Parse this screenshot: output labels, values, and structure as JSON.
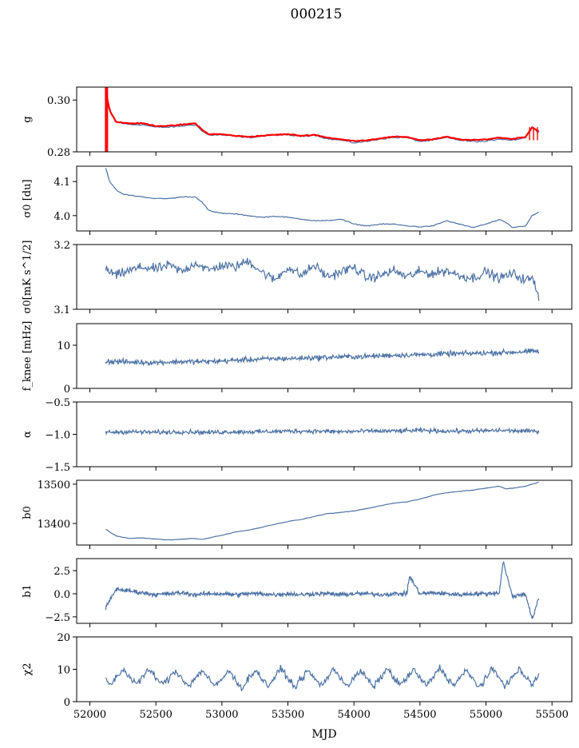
{
  "figure": {
    "title": "000215",
    "xlabel": "MJD"
  },
  "chart_data": [
    {
      "type": "line",
      "ylabel": "g",
      "ylim": [
        0.28,
        0.305
      ],
      "yticks": [
        0.28,
        0.3
      ],
      "ytick_labels": [
        "0.28",
        "0.30"
      ],
      "xlim": [
        51900,
        55650
      ],
      "series": [
        {
          "role": "data",
          "color": "#4c72a4",
          "x": [
            52120,
            52150,
            52200,
            52300,
            52400,
            52500,
            52600,
            52700,
            52800,
            52850,
            52900,
            53000,
            53100,
            53200,
            53300,
            53400,
            53500,
            53600,
            53700,
            53800,
            53900,
            54000,
            54100,
            54200,
            54300,
            54400,
            54500,
            54600,
            54700,
            54800,
            54900,
            55000,
            55100,
            55200,
            55300,
            55350,
            55400
          ],
          "y": [
            0.304,
            0.296,
            0.2915,
            0.2905,
            0.2905,
            0.2895,
            0.2895,
            0.29,
            0.2905,
            0.288,
            0.2865,
            0.2865,
            0.286,
            0.2855,
            0.286,
            0.2865,
            0.2865,
            0.286,
            0.2865,
            0.285,
            0.2845,
            0.2835,
            0.284,
            0.285,
            0.2855,
            0.2855,
            0.284,
            0.2845,
            0.2855,
            0.2845,
            0.284,
            0.284,
            0.285,
            0.2845,
            0.2855,
            0.2895,
            0.2875
          ]
        },
        {
          "role": "fit",
          "color": "#ff0000",
          "x": [
            52120,
            52150,
            52200,
            52300,
            52400,
            52500,
            52600,
            52700,
            52800,
            52850,
            52900,
            53000,
            53100,
            53200,
            53300,
            53400,
            53500,
            53600,
            53700,
            53800,
            53900,
            54000,
            54100,
            54200,
            54300,
            54400,
            54500,
            54600,
            54700,
            54800,
            54900,
            55000,
            55100,
            55200,
            55300,
            55350,
            55400
          ],
          "y": [
            0.3035,
            0.296,
            0.2915,
            0.291,
            0.291,
            0.29,
            0.29,
            0.2905,
            0.291,
            0.2885,
            0.2868,
            0.2868,
            0.2862,
            0.2858,
            0.2862,
            0.2866,
            0.2868,
            0.2862,
            0.2866,
            0.2855,
            0.2848,
            0.2842,
            0.2845,
            0.2852,
            0.2858,
            0.2858,
            0.2845,
            0.2848,
            0.2858,
            0.2848,
            0.2845,
            0.2848,
            0.2855,
            0.285,
            0.2858,
            0.2895,
            0.2878
          ]
        }
      ]
    },
    {
      "type": "line",
      "ylabel": "σ0 [du]",
      "ylim": [
        3.955,
        4.145
      ],
      "yticks": [
        4.0,
        4.1
      ],
      "ytick_labels": [
        "4.0",
        "4.1"
      ],
      "xlim": [
        51900,
        55650
      ],
      "series": [
        {
          "color": "#4c72a4",
          "x": [
            52120,
            52150,
            52200,
            52250,
            52300,
            52400,
            52500,
            52600,
            52700,
            52800,
            52850,
            52900,
            52950,
            53000,
            53100,
            53200,
            53300,
            53400,
            53500,
            53600,
            53700,
            53800,
            53900,
            54000,
            54100,
            54200,
            54300,
            54400,
            54500,
            54600,
            54700,
            54800,
            54900,
            55000,
            55100,
            55150,
            55200,
            55300,
            55350,
            55400
          ],
          "y": [
            4.14,
            4.1,
            4.075,
            4.063,
            4.06,
            4.055,
            4.05,
            4.05,
            4.055,
            4.055,
            4.04,
            4.015,
            4.01,
            4.007,
            4.005,
            4.0,
            3.995,
            3.998,
            3.995,
            3.99,
            3.985,
            3.985,
            3.99,
            3.975,
            3.97,
            3.975,
            3.975,
            3.97,
            3.967,
            3.97,
            3.985,
            3.975,
            3.965,
            3.975,
            3.988,
            3.98,
            3.965,
            3.97,
            4.0,
            4.01
          ]
        }
      ]
    },
    {
      "type": "line",
      "ylabel": "σ0[mK s^1/2]",
      "ylim": [
        3.1,
        3.2
      ],
      "yticks": [
        3.1,
        3.2
      ],
      "ytick_labels": [
        "3.1",
        "3.2"
      ],
      "xlim": [
        51900,
        55650
      ],
      "series": [
        {
          "color": "#4c72a4",
          "x": [
            52120,
            52200,
            52300,
            52400,
            52500,
            52600,
            52700,
            52800,
            52900,
            53000,
            53100,
            53200,
            53300,
            53400,
            53500,
            53600,
            53700,
            53800,
            53900,
            54000,
            54100,
            54200,
            54300,
            54400,
            54500,
            54600,
            54700,
            54800,
            54900,
            55000,
            55100,
            55200,
            55300,
            55350,
            55400
          ],
          "y": [
            3.162,
            3.152,
            3.16,
            3.165,
            3.162,
            3.168,
            3.158,
            3.172,
            3.16,
            3.168,
            3.165,
            3.175,
            3.158,
            3.145,
            3.165,
            3.152,
            3.168,
            3.15,
            3.158,
            3.165,
            3.148,
            3.152,
            3.16,
            3.15,
            3.158,
            3.155,
            3.16,
            3.152,
            3.148,
            3.158,
            3.148,
            3.155,
            3.145,
            3.148,
            3.12
          ]
        }
      ]
    },
    {
      "type": "line",
      "ylabel": "f_knee [mHz]",
      "ylim": [
        0,
        15
      ],
      "yticks": [
        0,
        10
      ],
      "ytick_labels": [
        "0",
        "10"
      ],
      "xlim": [
        51900,
        55650
      ],
      "series": [
        {
          "color": "#4c72a4",
          "x": [
            52120,
            52300,
            52500,
            52700,
            52900,
            53100,
            53300,
            53500,
            53700,
            53900,
            54100,
            54300,
            54500,
            54700,
            54900,
            55100,
            55300,
            55400
          ],
          "y": [
            6.3,
            6.1,
            6.0,
            6.2,
            6.2,
            6.5,
            6.8,
            6.9,
            7.1,
            7.3,
            7.4,
            7.7,
            7.8,
            8.0,
            8.1,
            8.3,
            8.5,
            8.6
          ]
        }
      ]
    },
    {
      "type": "line",
      "ylabel": "α",
      "ylim": [
        -1.5,
        -0.5
      ],
      "yticks": [
        -1.5,
        -1.0,
        -0.5
      ],
      "ytick_labels": [
        "−1.5",
        "−1.0",
        "−0.5"
      ],
      "xlim": [
        51900,
        55650
      ],
      "series": [
        {
          "color": "#4c72a4",
          "x": [
            52120,
            52300,
            52500,
            52700,
            52900,
            53100,
            53300,
            53500,
            53700,
            53900,
            54100,
            54300,
            54500,
            54700,
            54900,
            55100,
            55300,
            55400
          ],
          "y": [
            -0.97,
            -0.96,
            -0.97,
            -0.96,
            -0.97,
            -0.96,
            -0.96,
            -0.95,
            -0.95,
            -0.96,
            -0.95,
            -0.95,
            -0.94,
            -0.95,
            -0.95,
            -0.94,
            -0.95,
            -0.95
          ]
        }
      ]
    },
    {
      "type": "line",
      "ylabel": "b0",
      "ylim": [
        13345,
        13510
      ],
      "yticks": [
        13400,
        13500
      ],
      "ytick_labels": [
        "13400",
        "13500"
      ],
      "xlim": [
        51900,
        55650
      ],
      "series": [
        {
          "color": "#4c72a4",
          "x": [
            52120,
            52200,
            52300,
            52400,
            52500,
            52600,
            52700,
            52800,
            52850,
            52900,
            53000,
            53100,
            53200,
            53300,
            53400,
            53500,
            53600,
            53700,
            53800,
            53900,
            54000,
            54100,
            54200,
            54300,
            54400,
            54500,
            54600,
            54700,
            54800,
            54900,
            55000,
            55100,
            55150,
            55200,
            55300,
            55400
          ],
          "y": [
            13385,
            13368,
            13362,
            13363,
            13360,
            13358,
            13360,
            13362,
            13359,
            13363,
            13370,
            13378,
            13383,
            13390,
            13398,
            13405,
            13410,
            13418,
            13425,
            13428,
            13432,
            13438,
            13445,
            13452,
            13455,
            13462,
            13472,
            13478,
            13482,
            13485,
            13490,
            13495,
            13488,
            13490,
            13495,
            13505
          ]
        }
      ]
    },
    {
      "type": "line",
      "ylabel": "b1",
      "ylim": [
        -3.2,
        3.8
      ],
      "yticks": [
        -2.5,
        0.0,
        2.5
      ],
      "ytick_labels": [
        "−2.5",
        "0.0",
        "2.5"
      ],
      "xlim": [
        51900,
        55650
      ],
      "series": [
        {
          "color": "#4c72a4",
          "x": [
            52120,
            52200,
            52300,
            52400,
            52500,
            52600,
            52700,
            52800,
            52900,
            53000,
            53100,
            53200,
            53300,
            53400,
            53500,
            53600,
            53700,
            53800,
            53900,
            54000,
            54100,
            54200,
            54300,
            54400,
            54420,
            54500,
            54600,
            54700,
            54800,
            54900,
            55000,
            55100,
            55130,
            55200,
            55300,
            55350,
            55400
          ],
          "y": [
            -1.5,
            0.5,
            0.3,
            0.1,
            -0.1,
            0.0,
            0.1,
            -0.1,
            0.0,
            0.0,
            -0.1,
            0.0,
            0.0,
            -0.1,
            0.0,
            -0.1,
            0.0,
            0.0,
            -0.1,
            0.0,
            0.0,
            -0.1,
            0.0,
            0.0,
            1.9,
            0.0,
            0.1,
            0.0,
            -0.1,
            0.0,
            0.0,
            0.1,
            3.5,
            -0.3,
            0.0,
            -2.8,
            -0.5
          ]
        }
      ]
    },
    {
      "type": "line",
      "ylabel": "χ2",
      "ylim": [
        0,
        20
      ],
      "yticks": [
        0,
        10,
        20
      ],
      "ytick_labels": [
        "0",
        "10",
        "20"
      ],
      "xlim": [
        51900,
        55650
      ],
      "series": [
        {
          "color": "#4c72a4",
          "x": [
            52120,
            52150,
            52250,
            52350,
            52450,
            52550,
            52650,
            52750,
            52850,
            52950,
            53050,
            53150,
            53250,
            53350,
            53450,
            53550,
            53650,
            53750,
            53850,
            53950,
            54050,
            54150,
            54250,
            54350,
            54450,
            54550,
            54650,
            54750,
            54850,
            54950,
            55050,
            55150,
            55250,
            55350,
            55400
          ],
          "y": [
            7.5,
            5.0,
            10.0,
            5.5,
            9.8,
            5.2,
            9.5,
            4.8,
            9.8,
            4.5,
            9.5,
            4.2,
            9.8,
            4.8,
            10.2,
            4.5,
            9.5,
            5.0,
            10.0,
            4.8,
            9.5,
            4.5,
            10.2,
            5.0,
            9.8,
            4.8,
            10.5,
            5.0,
            9.5,
            4.5,
            10.0,
            5.0,
            10.0,
            5.2,
            8.5
          ]
        }
      ]
    }
  ],
  "xaxis": {
    "ticks": [
      52000,
      52500,
      53000,
      53500,
      54000,
      54500,
      55000,
      55500
    ],
    "tick_labels": [
      "52000",
      "52500",
      "53000",
      "53500",
      "54000",
      "54500",
      "55000",
      "55500"
    ]
  }
}
